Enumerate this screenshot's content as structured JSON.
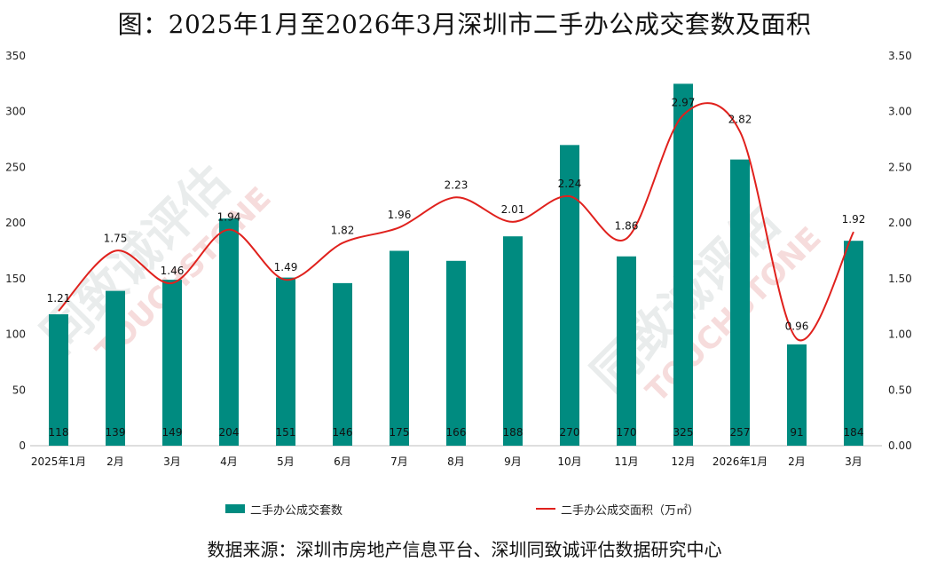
{
  "chart_data": {
    "type": "bar+line",
    "title": "图：2025年1月至2026年3月深圳市二手办公成交套数及面积",
    "categories": [
      "2025年1月",
      "2月",
      "3月",
      "4月",
      "5月",
      "6月",
      "7月",
      "8月",
      "9月",
      "10月",
      "11月",
      "12月",
      "2026年1月",
      "2月",
      "3月"
    ],
    "series": [
      {
        "name": "二手办公成交套数",
        "type": "bar",
        "axis": "left",
        "color": "#008b80",
        "values": [
          118,
          139,
          149,
          204,
          151,
          146,
          175,
          166,
          188,
          270,
          170,
          325,
          257,
          91,
          184
        ]
      },
      {
        "name": "二手办公成交面积（万㎡）",
        "type": "line",
        "axis": "right",
        "color": "#e0211d",
        "values": [
          1.21,
          1.75,
          1.46,
          1.94,
          1.49,
          1.82,
          1.96,
          2.23,
          2.01,
          2.24,
          1.86,
          2.97,
          2.82,
          0.96,
          1.92
        ]
      }
    ],
    "left_axis": {
      "min": 0,
      "max": 350,
      "ticks": [
        "0",
        "50",
        "100",
        "150",
        "200",
        "250",
        "300",
        "350"
      ]
    },
    "right_axis": {
      "min": 0,
      "max": 3.5,
      "ticks": [
        "0.00",
        "0.50",
        "1.00",
        "1.50",
        "2.00",
        "2.50",
        "3.00",
        "3.50"
      ]
    },
    "grid": false,
    "legend_position": "bottom"
  },
  "legend": {
    "bar_label": "二手办公成交套数",
    "line_label": "二手办公成交面积（万㎡）"
  },
  "source": "数据来源：深圳市房地产信息平台、深圳同致诚评估数据研究中心",
  "watermark": {
    "text": "同致诚评估",
    "latin": "TOUCHSTONE"
  }
}
